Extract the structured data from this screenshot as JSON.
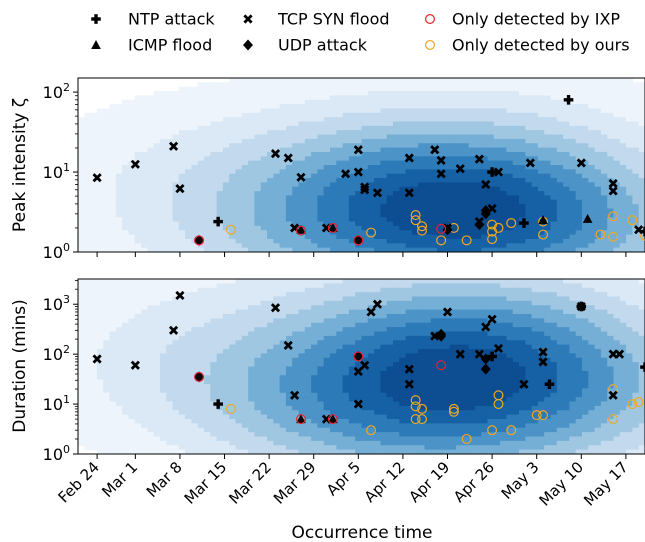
{
  "legend": {
    "placement": "top",
    "items": [
      {
        "label": "NTP attack",
        "marker": "plus",
        "color": "#000000"
      },
      {
        "label": "ICMP flood",
        "marker": "triangle",
        "color": "#000000"
      },
      {
        "label": "TCP SYN flood",
        "marker": "x",
        "color": "#000000"
      },
      {
        "label": "UDP attack",
        "marker": "diamond",
        "color": "#000000"
      },
      {
        "label": "Only detected by IXP",
        "marker": "circle",
        "color": "#e8202a"
      },
      {
        "label": "Only detected by ours",
        "marker": "circle",
        "color": "#f0a820"
      }
    ]
  },
  "chart_data": [
    {
      "type": "scatter",
      "title": "",
      "xlabel": "",
      "ylabel": "Peak intensity ζ",
      "yscale": "log",
      "ylim": [
        1,
        150
      ],
      "xlim": [
        "2020-02-21",
        "2020-05-20"
      ],
      "yticks": [
        {
          "v": 1,
          "label": "10^0"
        },
        {
          "v": 10,
          "label": "10^1"
        },
        {
          "v": 100,
          "label": "10^2"
        }
      ],
      "series": [
        {
          "name": "NTP attack",
          "marker": "plus",
          "points": [
            {
              "x": "2020-03-14",
              "y": 2.4
            },
            {
              "x": "2020-05-08",
              "y": 80
            },
            {
              "x": "2020-04-26",
              "y": 10
            },
            {
              "x": "2020-05-01",
              "y": 2.3
            },
            {
              "x": "2020-05-20",
              "y": 1.8
            }
          ]
        },
        {
          "name": "ICMP flood",
          "marker": "triangle",
          "points": [
            {
              "x": "2020-03-27",
              "y": 1.9
            },
            {
              "x": "2020-04-01",
              "y": 2.0
            },
            {
              "x": "2020-05-11",
              "y": 2.6
            },
            {
              "x": "2020-05-04",
              "y": 2.5
            }
          ]
        },
        {
          "name": "TCP SYN flood",
          "marker": "x",
          "points": [
            {
              "x": "2020-02-24",
              "y": 8.5
            },
            {
              "x": "2020-03-01",
              "y": 12.5
            },
            {
              "x": "2020-03-07",
              "y": 21
            },
            {
              "x": "2020-03-08",
              "y": 6.2
            },
            {
              "x": "2020-03-23",
              "y": 17
            },
            {
              "x": "2020-03-26",
              "y": 2.0
            },
            {
              "x": "2020-03-25",
              "y": 15
            },
            {
              "x": "2020-03-27",
              "y": 8.6
            },
            {
              "x": "2020-03-31",
              "y": 2.0
            },
            {
              "x": "2020-04-03",
              "y": 9.5
            },
            {
              "x": "2020-04-05",
              "y": 19
            },
            {
              "x": "2020-04-05",
              "y": 10
            },
            {
              "x": "2020-04-06",
              "y": 6.0
            },
            {
              "x": "2020-04-06",
              "y": 6.5
            },
            {
              "x": "2020-04-08",
              "y": 5.5
            },
            {
              "x": "2020-04-13",
              "y": 15
            },
            {
              "x": "2020-04-13",
              "y": 5.5
            },
            {
              "x": "2020-04-17",
              "y": 19
            },
            {
              "x": "2020-04-18",
              "y": 14
            },
            {
              "x": "2020-04-18",
              "y": 9.5
            },
            {
              "x": "2020-04-19",
              "y": 2.0
            },
            {
              "x": "2020-04-21",
              "y": 11
            },
            {
              "x": "2020-04-24",
              "y": 2.4
            },
            {
              "x": "2020-04-24",
              "y": 14.5
            },
            {
              "x": "2020-04-25",
              "y": 7.0
            },
            {
              "x": "2020-04-26",
              "y": 3.5
            },
            {
              "x": "2020-04-27",
              "y": 10
            },
            {
              "x": "2020-05-02",
              "y": 13
            },
            {
              "x": "2020-05-10",
              "y": 13
            },
            {
              "x": "2020-05-15",
              "y": 7.2
            },
            {
              "x": "2020-05-15",
              "y": 5.8
            },
            {
              "x": "2020-05-19",
              "y": 1.9
            }
          ]
        },
        {
          "name": "UDP attack",
          "marker": "diamond",
          "points": [
            {
              "x": "2020-03-11",
              "y": 1.4
            },
            {
              "x": "2020-04-05",
              "y": 1.4
            },
            {
              "x": "2020-04-24",
              "y": 2.2
            },
            {
              "x": "2020-04-25",
              "y": 3.0
            },
            {
              "x": "2020-04-25",
              "y": 3.3
            },
            {
              "x": "2020-04-19",
              "y": 1.9
            }
          ]
        },
        {
          "name": "Only detected by IXP",
          "marker": "circle",
          "points": [
            {
              "x": "2020-03-11",
              "y": 1.4
            },
            {
              "x": "2020-03-27",
              "y": 1.85
            },
            {
              "x": "2020-04-01",
              "y": 2.0
            },
            {
              "x": "2020-04-05",
              "y": 1.4
            },
            {
              "x": "2020-04-18",
              "y": 1.95
            }
          ]
        },
        {
          "name": "Only detected by ours",
          "marker": "circle",
          "points": [
            {
              "x": "2020-03-16",
              "y": 1.9
            },
            {
              "x": "2020-04-07",
              "y": 1.75
            },
            {
              "x": "2020-04-14",
              "y": 2.9
            },
            {
              "x": "2020-04-14",
              "y": 2.5
            },
            {
              "x": "2020-04-15",
              "y": 2.1
            },
            {
              "x": "2020-04-15",
              "y": 1.85
            },
            {
              "x": "2020-04-18",
              "y": 1.4
            },
            {
              "x": "2020-04-20",
              "y": 2.0
            },
            {
              "x": "2020-04-22",
              "y": 1.4
            },
            {
              "x": "2020-04-26",
              "y": 2.2
            },
            {
              "x": "2020-04-26",
              "y": 1.8
            },
            {
              "x": "2020-04-26",
              "y": 1.45
            },
            {
              "x": "2020-04-27",
              "y": 2.0
            },
            {
              "x": "2020-04-29",
              "y": 2.3
            },
            {
              "x": "2020-05-04",
              "y": 2.4
            },
            {
              "x": "2020-05-04",
              "y": 1.65
            },
            {
              "x": "2020-05-13",
              "y": 1.65
            },
            {
              "x": "2020-05-15",
              "y": 2.8
            },
            {
              "x": "2020-05-15",
              "y": 1.55
            },
            {
              "x": "2020-05-18",
              "y": 2.5
            },
            {
              "x": "2020-05-20",
              "y": 1.6
            }
          ]
        }
      ]
    },
    {
      "type": "scatter",
      "title": "",
      "xlabel": "Occurrence time",
      "ylabel": "Duration (mins)",
      "yscale": "log",
      "ylim": [
        1,
        3200
      ],
      "xlim": [
        "2020-02-21",
        "2020-05-20"
      ],
      "yticks": [
        {
          "v": 1,
          "label": "10^0"
        },
        {
          "v": 10,
          "label": "10^1"
        },
        {
          "v": 100,
          "label": "10^2"
        },
        {
          "v": 1000,
          "label": "10^3"
        }
      ],
      "xticks": [
        {
          "v": "2020-02-24",
          "label": "Feb 24"
        },
        {
          "v": "2020-03-01",
          "label": "Mar 1"
        },
        {
          "v": "2020-03-08",
          "label": "Mar 8"
        },
        {
          "v": "2020-03-15",
          "label": "Mar 15"
        },
        {
          "v": "2020-03-22",
          "label": "Mar 22"
        },
        {
          "v": "2020-03-29",
          "label": "Mar 29"
        },
        {
          "v": "2020-04-05",
          "label": "Apr 5"
        },
        {
          "v": "2020-04-12",
          "label": "Apr 12"
        },
        {
          "v": "2020-04-19",
          "label": "Apr 19"
        },
        {
          "v": "2020-04-26",
          "label": "Apr 26"
        },
        {
          "v": "2020-05-03",
          "label": "May 3"
        },
        {
          "v": "2020-05-10",
          "label": "May 10"
        },
        {
          "v": "2020-05-17",
          "label": "May 17"
        }
      ],
      "series": [
        {
          "name": "NTP attack",
          "marker": "plus",
          "points": [
            {
              "x": "2020-03-14",
              "y": 10
            },
            {
              "x": "2020-05-10",
              "y": 900
            },
            {
              "x": "2020-04-26",
              "y": 90
            },
            {
              "x": "2020-05-05",
              "y": 25
            },
            {
              "x": "2020-05-20",
              "y": 55
            }
          ]
        },
        {
          "name": "ICMP flood",
          "marker": "triangle",
          "points": [
            {
              "x": "2020-03-27",
              "y": 5
            },
            {
              "x": "2020-04-01",
              "y": 5
            }
          ]
        },
        {
          "name": "TCP SYN flood",
          "marker": "x",
          "points": [
            {
              "x": "2020-02-24",
              "y": 80
            },
            {
              "x": "2020-03-01",
              "y": 60
            },
            {
              "x": "2020-03-07",
              "y": 300
            },
            {
              "x": "2020-03-08",
              "y": 1500
            },
            {
              "x": "2020-03-23",
              "y": 850
            },
            {
              "x": "2020-03-25",
              "y": 150
            },
            {
              "x": "2020-03-26",
              "y": 15
            },
            {
              "x": "2020-03-31",
              "y": 5
            },
            {
              "x": "2020-04-05",
              "y": 45
            },
            {
              "x": "2020-04-05",
              "y": 10
            },
            {
              "x": "2020-04-06",
              "y": 60
            },
            {
              "x": "2020-04-07",
              "y": 700
            },
            {
              "x": "2020-04-08",
              "y": 1000
            },
            {
              "x": "2020-04-13",
              "y": 25
            },
            {
              "x": "2020-04-13",
              "y": 50
            },
            {
              "x": "2020-04-17",
              "y": 230
            },
            {
              "x": "2020-04-19",
              "y": 700
            },
            {
              "x": "2020-04-21",
              "y": 100
            },
            {
              "x": "2020-04-24",
              "y": 100
            },
            {
              "x": "2020-04-25",
              "y": 350
            },
            {
              "x": "2020-04-26",
              "y": 500
            },
            {
              "x": "2020-04-27",
              "y": 130
            },
            {
              "x": "2020-05-01",
              "y": 25
            },
            {
              "x": "2020-05-04",
              "y": 110
            },
            {
              "x": "2020-05-04",
              "y": 70
            },
            {
              "x": "2020-05-10",
              "y": 900
            },
            {
              "x": "2020-05-15",
              "y": 15
            },
            {
              "x": "2020-05-15",
              "y": 100
            },
            {
              "x": "2020-05-16",
              "y": 100
            }
          ]
        },
        {
          "name": "UDP attack",
          "marker": "diamond",
          "points": [
            {
              "x": "2020-03-11",
              "y": 35
            },
            {
              "x": "2020-04-05",
              "y": 90
            },
            {
              "x": "2020-04-18",
              "y": 250
            },
            {
              "x": "2020-04-18",
              "y": 230
            },
            {
              "x": "2020-04-25",
              "y": 50
            },
            {
              "x": "2020-04-25",
              "y": 80
            }
          ]
        },
        {
          "name": "Only detected by IXP",
          "marker": "circle",
          "points": [
            {
              "x": "2020-03-11",
              "y": 35
            },
            {
              "x": "2020-03-27",
              "y": 5
            },
            {
              "x": "2020-04-01",
              "y": 5
            },
            {
              "x": "2020-04-05",
              "y": 90
            },
            {
              "x": "2020-04-18",
              "y": 60
            }
          ]
        },
        {
          "name": "Only detected by ours",
          "marker": "circle",
          "points": [
            {
              "x": "2020-03-16",
              "y": 8
            },
            {
              "x": "2020-04-07",
              "y": 3
            },
            {
              "x": "2020-04-14",
              "y": 12
            },
            {
              "x": "2020-04-14",
              "y": 9
            },
            {
              "x": "2020-04-14",
              "y": 5
            },
            {
              "x": "2020-04-15",
              "y": 8
            },
            {
              "x": "2020-04-15",
              "y": 5
            },
            {
              "x": "2020-04-20",
              "y": 8
            },
            {
              "x": "2020-04-20",
              "y": 7
            },
            {
              "x": "2020-04-22",
              "y": 2
            },
            {
              "x": "2020-04-26",
              "y": 3
            },
            {
              "x": "2020-04-27",
              "y": 15
            },
            {
              "x": "2020-04-27",
              "y": 10
            },
            {
              "x": "2020-04-29",
              "y": 3
            },
            {
              "x": "2020-05-03",
              "y": 6
            },
            {
              "x": "2020-05-04",
              "y": 6
            },
            {
              "x": "2020-05-15",
              "y": 20
            },
            {
              "x": "2020-05-15",
              "y": 5
            },
            {
              "x": "2020-05-18",
              "y": 10
            },
            {
              "x": "2020-05-19",
              "y": 11
            }
          ]
        }
      ]
    }
  ]
}
